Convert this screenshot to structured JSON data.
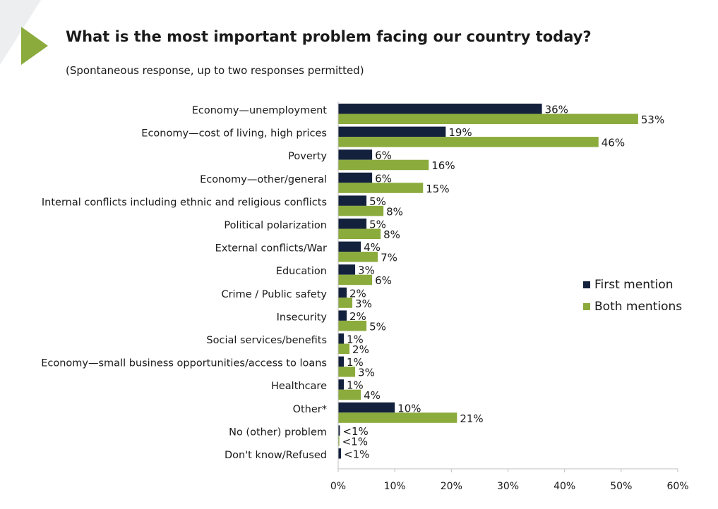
{
  "header": {
    "title": "What is the most important problem facing our country today?",
    "subtitle": "(Spontaneous response, up to two responses permitted)"
  },
  "colors": {
    "first_mention": "#14213d",
    "both_mentions": "#8bab3c",
    "axis": "#bfbfbf",
    "arrow_accent": "#8bab3c"
  },
  "legend": {
    "placement": "right",
    "first_label": "First mention",
    "both_label": "Both mentions"
  },
  "chart_data": {
    "type": "bar",
    "orientation": "horizontal",
    "title": "What is the most important problem facing our country today?",
    "subtitle": "(Spontaneous response, up to two responses permitted)",
    "xlim": [
      0,
      60
    ],
    "xticks": [
      "0%",
      "10%",
      "20%",
      "30%",
      "40%",
      "50%",
      "60%"
    ],
    "grid": false,
    "categories": [
      "Economy—unemployment",
      "Economy—cost of living, high prices",
      "Poverty",
      "Economy—other/general",
      "Internal conflicts including ethnic and religious conflicts",
      "Political polarization",
      "External conflicts/War",
      "Education",
      "Crime / Public safety",
      "Insecurity",
      "Social services/benefits",
      "Economy—small business opportunities/access to loans",
      "Healthcare",
      "Other*",
      "No (other) problem",
      "Don't know/Refused"
    ],
    "series": [
      {
        "name": "First mention",
        "values": [
          36,
          19,
          6,
          6,
          5,
          5,
          4,
          3,
          1.5,
          1.5,
          1,
          1,
          1,
          10,
          0.3,
          0.5
        ],
        "labels": [
          "36%",
          "19%",
          "6%",
          "6%",
          "5%",
          "5%",
          "4%",
          "3%",
          "2%",
          "2%",
          "1%",
          "1%",
          "1%",
          "10%",
          "<1%",
          "<1%"
        ]
      },
      {
        "name": "Both mentions",
        "values": [
          53,
          46,
          16,
          15,
          8,
          7.5,
          7,
          6,
          2.5,
          5,
          2,
          3,
          4,
          21,
          0.2,
          null
        ],
        "labels": [
          "53%",
          "46%",
          "16%",
          "15%",
          "8%",
          "8%",
          "7%",
          "6%",
          "3%",
          "5%",
          "2%",
          "3%",
          "4%",
          "21%",
          "<1%",
          null
        ]
      }
    ]
  }
}
